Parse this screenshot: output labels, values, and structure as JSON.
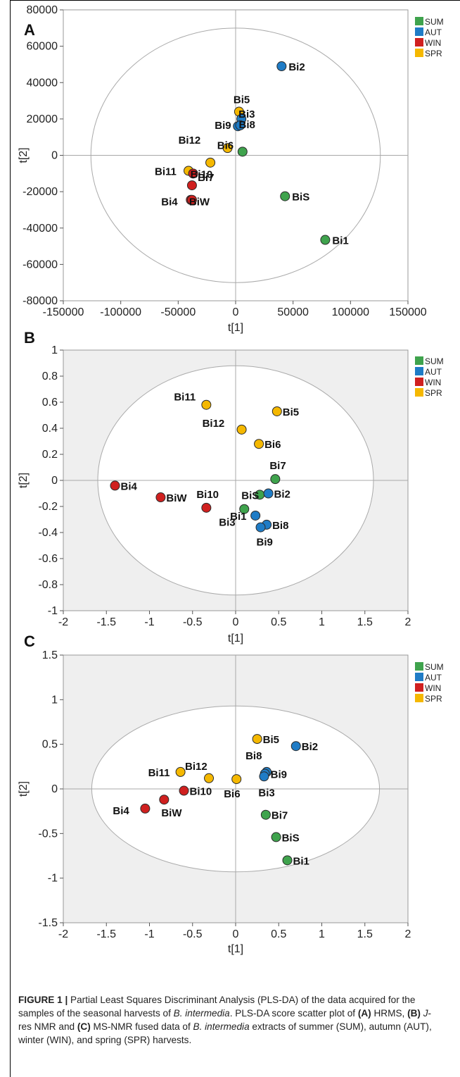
{
  "legend": [
    {
      "label": "SUM",
      "color": "#3fa34d"
    },
    {
      "label": "AUT",
      "color": "#1f7cc6"
    },
    {
      "label": "WIN",
      "color": "#d0201f"
    },
    {
      "label": "SPR",
      "color": "#f5b800"
    }
  ],
  "chart_data": [
    {
      "type": "scatter",
      "panel": "A",
      "xlabel": "t[1]",
      "ylabel": "t[2]",
      "xlim": [
        -150000,
        150000
      ],
      "ylim": [
        -80000,
        80000
      ],
      "xticks": [
        -150000,
        -100000,
        -50000,
        0,
        50000,
        100000,
        150000
      ],
      "yticks": [
        80000,
        60000,
        40000,
        20000,
        0,
        -20000,
        -40000,
        -60000,
        -80000
      ],
      "ellipse": {
        "rx": 126000,
        "ry": 70000
      },
      "shaded": false,
      "points": [
        {
          "label": "Bi2",
          "season": "AUT",
          "x": 40000,
          "y": 49000
        },
        {
          "label": "Bi5",
          "season": "SPR",
          "x": 3000,
          "y": 24000
        },
        {
          "label": "Bi3",
          "season": "AUT",
          "x": 5000,
          "y": 20000
        },
        {
          "label": "Bi9",
          "season": "AUT",
          "x": 2000,
          "y": 16000
        },
        {
          "label": "Bi8",
          "season": "AUT",
          "x": 4000,
          "y": 16500
        },
        {
          "label": "Bi12",
          "season": "SPR",
          "x": -7000,
          "y": 4000
        },
        {
          "label": "Bi6",
          "season": "SUM",
          "x": 6000,
          "y": 2000
        },
        {
          "label": "Bi7",
          "season": "SPR",
          "x": -22000,
          "y": -4000
        },
        {
          "label": "Bi11",
          "season": "SPR",
          "x": -41000,
          "y": -8500
        },
        {
          "label": "Bi10",
          "season": "WIN",
          "x": -37000,
          "y": -10000
        },
        {
          "label": "",
          "season": "WIN",
          "x": -38000,
          "y": -16500
        },
        {
          "label": "Bi4",
          "season": "WIN",
          "x": -39000,
          "y": -24500
        },
        {
          "label": "BiW",
          "season": "WIN",
          "x": -38000,
          "y": -24500
        },
        {
          "label": "BiS",
          "season": "SUM",
          "x": 43000,
          "y": -22500
        },
        {
          "label": "Bi1",
          "season": "SUM",
          "x": 78000,
          "y": -46500
        }
      ]
    },
    {
      "type": "scatter",
      "panel": "B",
      "xlabel": "t[1]",
      "ylabel": "t[2]",
      "xlim": [
        -2,
        2
      ],
      "ylim": [
        -1,
        1
      ],
      "xticks": [
        -2,
        -1.5,
        -1,
        -0.5,
        0,
        0.5,
        1,
        1.5,
        2
      ],
      "yticks": [
        1,
        0.8,
        0.6,
        0.4,
        0.2,
        0,
        -0.2,
        -0.4,
        -0.6,
        -0.8,
        -1
      ],
      "ellipse": {
        "rx": 1.6,
        "ry": 0.88
      },
      "shaded": true,
      "points": [
        {
          "label": "Bi11",
          "season": "SPR",
          "x": -0.34,
          "y": 0.58
        },
        {
          "label": "Bi5",
          "season": "SPR",
          "x": 0.48,
          "y": 0.53
        },
        {
          "label": "Bi12",
          "season": "SPR",
          "x": 0.07,
          "y": 0.39
        },
        {
          "label": "Bi6",
          "season": "SPR",
          "x": 0.27,
          "y": 0.28
        },
        {
          "label": "Bi7",
          "season": "SUM",
          "x": 0.46,
          "y": 0.01
        },
        {
          "label": "Bi4",
          "season": "WIN",
          "x": -1.4,
          "y": -0.04
        },
        {
          "label": "BiW",
          "season": "WIN",
          "x": -0.87,
          "y": -0.13
        },
        {
          "label": "Bi10",
          "season": "WIN",
          "x": -0.34,
          "y": -0.21
        },
        {
          "label": "BiS",
          "season": "SUM",
          "x": 0.28,
          "y": -0.11
        },
        {
          "label": "Bi2",
          "season": "AUT",
          "x": 0.38,
          "y": -0.1
        },
        {
          "label": "Bi3",
          "season": "SUM",
          "x": 0.1,
          "y": -0.22
        },
        {
          "label": "Bi1",
          "season": "AUT",
          "x": 0.23,
          "y": -0.27
        },
        {
          "label": "Bi8",
          "season": "AUT",
          "x": 0.36,
          "y": -0.34
        },
        {
          "label": "Bi9",
          "season": "AUT",
          "x": 0.29,
          "y": -0.36
        }
      ]
    },
    {
      "type": "scatter",
      "panel": "C",
      "xlabel": "t[1]",
      "ylabel": "t[2]",
      "xlim": [
        -2,
        2
      ],
      "ylim": [
        -1.5,
        1.5
      ],
      "xticks": [
        -2,
        -1.5,
        -1,
        -0.5,
        0,
        0.5,
        1,
        1.5,
        2
      ],
      "yticks": [
        1.5,
        1,
        0.5,
        0,
        -0.5,
        -1,
        -1.5
      ],
      "ellipse": {
        "rx": 1.67,
        "ry": 0.93
      },
      "shaded": true,
      "points": [
        {
          "label": "Bi5",
          "season": "SPR",
          "x": 0.25,
          "y": 0.56
        },
        {
          "label": "Bi2",
          "season": "AUT",
          "x": 0.7,
          "y": 0.48
        },
        {
          "label": "Bi11",
          "season": "SPR",
          "x": -0.64,
          "y": 0.19
        },
        {
          "label": "Bi12",
          "season": "SPR",
          "x": -0.31,
          "y": 0.12
        },
        {
          "label": "Bi6",
          "season": "SPR",
          "x": 0.01,
          "y": 0.11
        },
        {
          "label": "Bi8",
          "season": "AUT",
          "x": 0.36,
          "y": 0.19
        },
        {
          "label": "Bi9",
          "season": "AUT",
          "x": 0.34,
          "y": 0.17
        },
        {
          "label": "Bi3",
          "season": "AUT",
          "x": 0.33,
          "y": 0.14
        },
        {
          "label": "Bi10",
          "season": "WIN",
          "x": -0.6,
          "y": -0.02
        },
        {
          "label": "BiW",
          "season": "WIN",
          "x": -0.83,
          "y": -0.12
        },
        {
          "label": "Bi4",
          "season": "WIN",
          "x": -1.05,
          "y": -0.22
        },
        {
          "label": "Bi7",
          "season": "SUM",
          "x": 0.35,
          "y": -0.29
        },
        {
          "label": "BiS",
          "season": "SUM",
          "x": 0.47,
          "y": -0.54
        },
        {
          "label": "Bi1",
          "season": "SUM",
          "x": 0.6,
          "y": -0.8
        }
      ]
    }
  ],
  "caption": {
    "label": "FIGURE 1 |",
    "text1": " Partial Least Squares Discriminant Analysis (PLS-DA) of the data acquired for the samples of the seasonal harvests of ",
    "species1": "B. intermedia",
    "text2": ". PLS-DA score scatter plot of ",
    "a": "(A)",
    "text3": " HRMS, ",
    "b": "(B)",
    "text4": " ",
    "jres": "J",
    "text5": "-res NMR and ",
    "c": "(C)",
    "text6": " MS-NMR fused data of ",
    "species2": "B. intermedia",
    "text7": " extracts of summer (SUM), autumn (AUT), winter (WIN), and spring (SPR) harvests."
  }
}
